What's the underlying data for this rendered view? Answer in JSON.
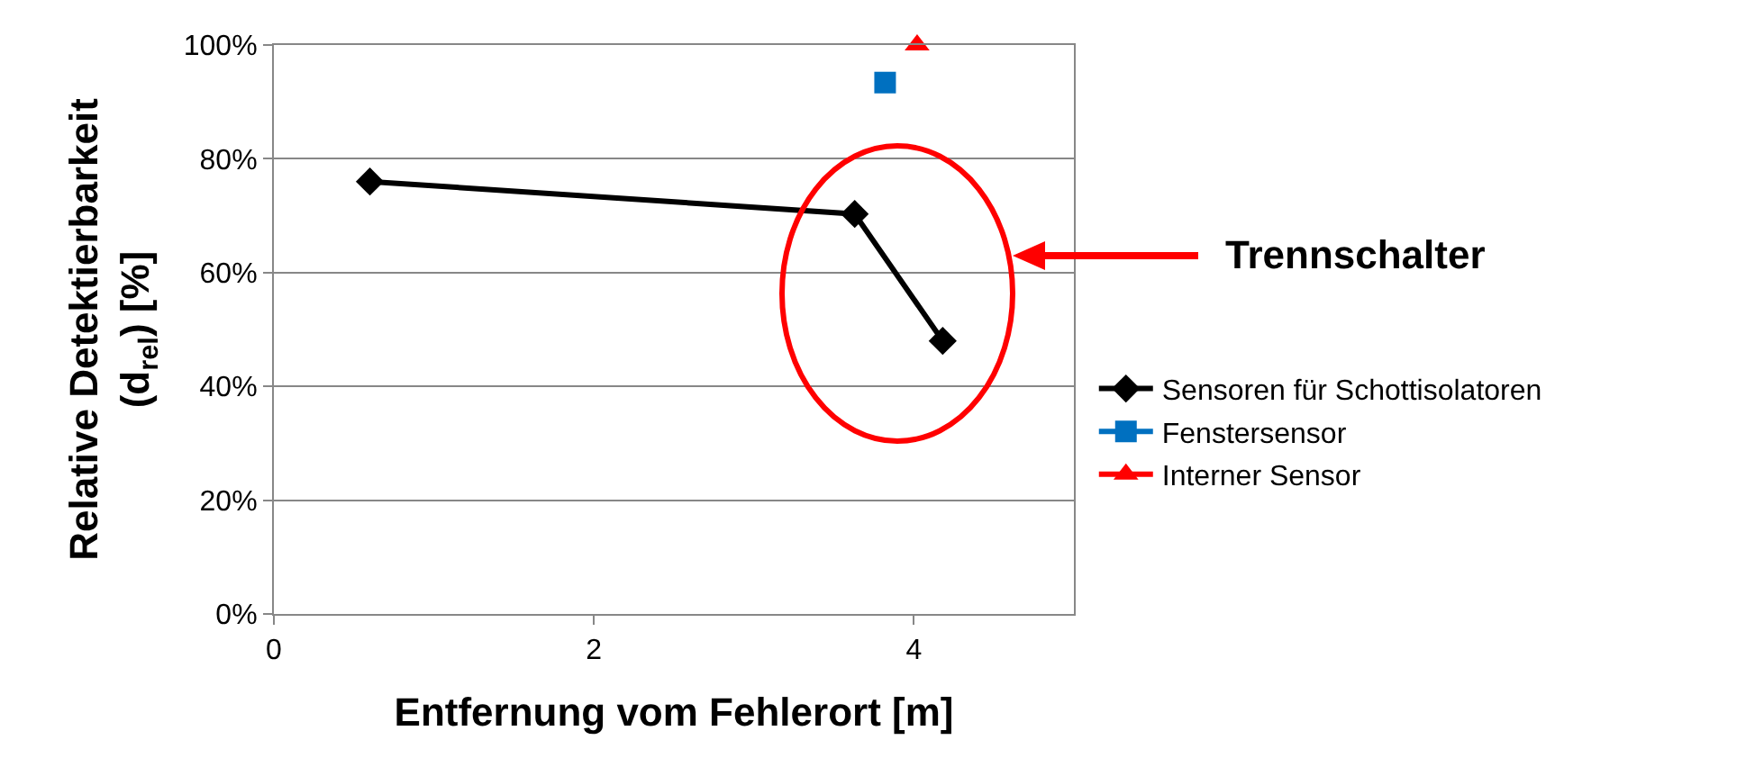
{
  "chart_data": {
    "type": "line",
    "xlabel": "Entfernung vom Fehlerort [m]",
    "ylabel": "Relative Detektierbarkeit\n(d$_{rel}$) [%]",
    "xlim": [
      0,
      5
    ],
    "xticks": [
      0,
      2,
      4
    ],
    "ylim": [
      0,
      100
    ],
    "yticks": [
      {
        "value": 0,
        "label": "0%"
      },
      {
        "value": 20,
        "label": "20%"
      },
      {
        "value": 40,
        "label": "40%"
      },
      {
        "value": 60,
        "label": "60%"
      },
      {
        "value": 80,
        "label": "80%"
      },
      {
        "value": 100,
        "label": "100%"
      }
    ],
    "grid": "y",
    "legend": "right",
    "line_style": "solid",
    "series": [
      {
        "name": "Sensoren für Schottisolatoren",
        "color": "#000000",
        "marker": "diamond",
        "x": [
          0.6,
          3.63,
          4.18
        ],
        "values": [
          76,
          70.3,
          48
        ]
      },
      {
        "name": "Fenstersensor",
        "color": "#0070c0",
        "marker": "square",
        "x": [
          3.82
        ],
        "values": [
          93.4
        ]
      },
      {
        "name": "Interner Sensor",
        "color": "#ff0000",
        "marker": "triangle",
        "x": [
          4.02
        ],
        "values": [
          100
        ]
      }
    ],
    "annotations": [
      "Trennschalter"
    ]
  }
}
